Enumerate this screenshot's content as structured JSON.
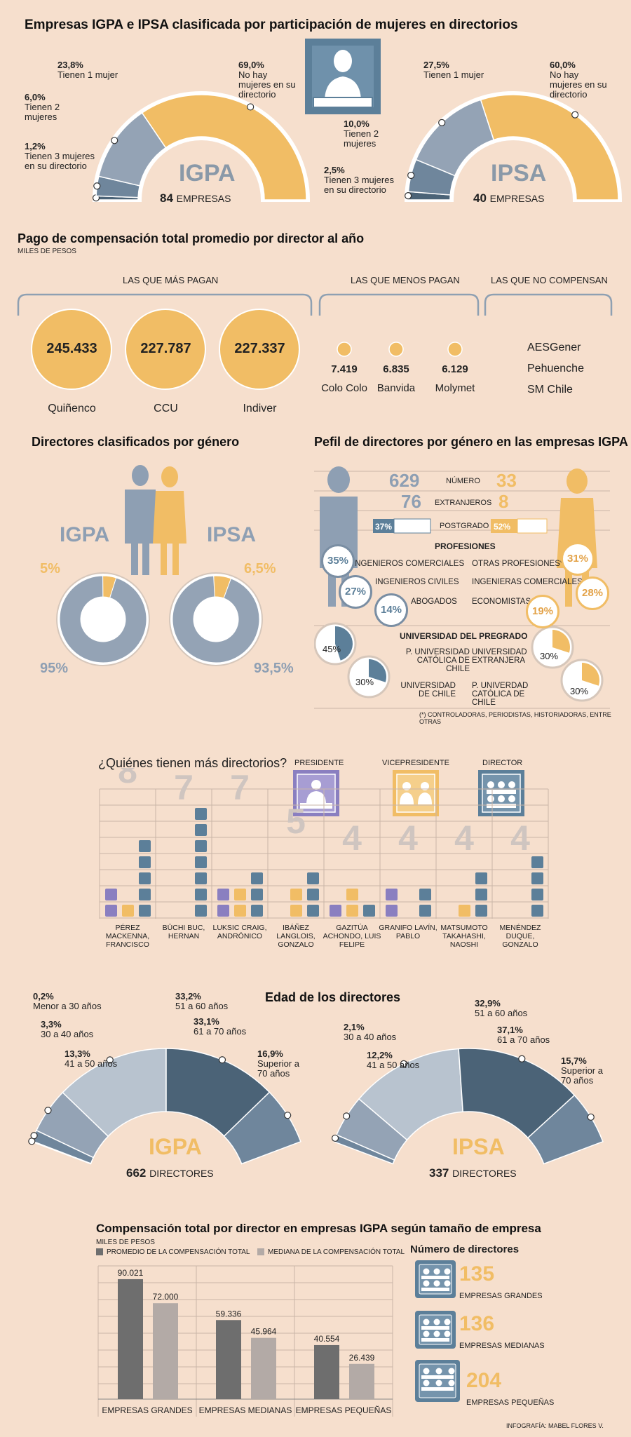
{
  "colors": {
    "bg": "#f6dfcd",
    "gold": "#f1bd65",
    "slate": "#94a3b5",
    "slate_light": "#b8c3cf",
    "navy": "#4b6377",
    "dark": "#5b6e80",
    "purple": "#8a7fc0",
    "grey_bar": "#6e6e6e",
    "grey_bar_light": "#b3aaa6"
  },
  "s1": {
    "title": "Empresas IGPA e IPSA clasificada por participación de mujeres en directorios",
    "igpa": {
      "name": "IGPA",
      "count": "84",
      "count_label": "EMPRESAS",
      "labels": [
        {
          "pct": "23,8%",
          "text": "Tienen 1 mujer"
        },
        {
          "pct": "6,0%",
          "text": "Tienen 2 mujeres"
        },
        {
          "pct": "1,2%",
          "text": "Tienen 3 mujeres en su directorio"
        },
        {
          "pct": "69,0%",
          "text": "No hay mujeres en su directorio"
        }
      ]
    },
    "ipsa": {
      "name": "IPSA",
      "count": "40",
      "count_label": "EMPRESAS",
      "labels": [
        {
          "pct": "27,5%",
          "text": "Tienen 1 mujer"
        },
        {
          "pct": "10,0%",
          "text": "Tienen 2 mujeres"
        },
        {
          "pct": "2,5%",
          "text": "Tienen 3 mujeres en su directorio"
        },
        {
          "pct": "60,0%",
          "text": "No hay mujeres en su directorio"
        }
      ]
    }
  },
  "s2": {
    "title": "Pago de compensación total promedio por director al año",
    "subtitle": "MILES DE PESOS",
    "group_top": "LAS QUE MÁS PAGAN",
    "group_low": "LAS QUE MENOS PAGAN",
    "group_none": "LAS QUE NO COMPENSAN",
    "top": [
      {
        "value": "245.433",
        "name": "Quiñenco"
      },
      {
        "value": "227.787",
        "name": "CCU"
      },
      {
        "value": "227.337",
        "name": "Indiver"
      }
    ],
    "low": [
      {
        "value": "7.419",
        "name": "Colo Colo"
      },
      {
        "value": "6.835",
        "name": "Banvida"
      },
      {
        "value": "6.129",
        "name": "Molymet"
      }
    ],
    "none": [
      "AESGener",
      "Pehuenche",
      "SM Chile"
    ]
  },
  "s3": {
    "title": "Directores clasificados por género",
    "igpa": {
      "name": "IGPA",
      "women": "5%",
      "men": "95%"
    },
    "ipsa": {
      "name": "IPSA",
      "women": "6,5%",
      "men": "93,5%"
    }
  },
  "s4": {
    "title": "Pefil de directores por género en las empresas IGPA",
    "rows": [
      {
        "men": "629",
        "label": "NÚMERO",
        "women": "33"
      },
      {
        "men": "76",
        "label": "EXTRANJEROS",
        "women": "8"
      },
      {
        "men": "37%",
        "label": "POSTGRADO",
        "women": "52%"
      }
    ],
    "prof_title": "PROFESIONES",
    "prof_men": [
      {
        "pct": "35%",
        "label": "INGENIEROS COMERCIALES"
      },
      {
        "pct": "27%",
        "label": "INGENIEROS CIVILES"
      },
      {
        "pct": "14%",
        "label": "ABOGADOS"
      }
    ],
    "prof_women": [
      {
        "pct": "31%",
        "label": "OTRAS PROFESIONES*"
      },
      {
        "pct": "28%",
        "label": "INGENIERAS COMERCIALES"
      },
      {
        "pct": "19%",
        "label": "ECONOMISTAS"
      }
    ],
    "uni_title": "UNIVERSIDAD DEL PREGRADO",
    "uni_men": [
      {
        "pct": "45%",
        "label": "P. UNIVERSIDAD CATÓLICA DE CHILE"
      },
      {
        "pct": "30%",
        "label": "UNIVERSIDAD DE CHILE"
      }
    ],
    "uni_women": [
      {
        "pct": "30%",
        "label": "UNIVERSIDAD EXTRANJERA"
      },
      {
        "pct": "30%",
        "label": "P. UNIVERDAD CATÓLICA DE CHILE"
      }
    ],
    "footnote": "(*) CONTROLADORAS, PERIODISTAS, HISTORIADORAS, ENTRE OTRAS"
  },
  "s5": {
    "title": "¿Quiénes tienen más directorios?",
    "legend": [
      "PRESIDENTE",
      "VICEPRESIDENTE",
      "DIRECTOR"
    ],
    "people": [
      {
        "name": "PÉREZ MACKENNA, FRANCISCO",
        "total": "8"
      },
      {
        "name": "BÜCHI BUC, HERNAN",
        "total": "7"
      },
      {
        "name": "LUKSIC CRAIG, ANDRÓNICO",
        "total": "7"
      },
      {
        "name": "IBÁÑEZ LANGLOIS, GONZALO",
        "total": "5"
      },
      {
        "name": "GAZITÚA ACHONDO, LUIS FELIPE",
        "total": "4"
      },
      {
        "name": "GRANIFO LAVÍN, PABLO",
        "total": "4"
      },
      {
        "name": "MATSUMOTO TAKAHASHI, NAOSHI",
        "total": "4"
      },
      {
        "name": "MENÉNDEZ DUQUE, GONZALO",
        "total": "4"
      }
    ]
  },
  "s6": {
    "title": "Edad de los directores",
    "igpa": {
      "name": "IGPA",
      "count": "662",
      "count_label": "DIRECTORES",
      "labels": [
        {
          "pct": "0,2%",
          "text": "Menor a 30 años"
        },
        {
          "pct": "3,3%",
          "text": "30 a 40 años"
        },
        {
          "pct": "13,3%",
          "text": "41 a 50 años"
        },
        {
          "pct": "33,2%",
          "text": "51 a 60 años"
        },
        {
          "pct": "33,1%",
          "text": "61 a 70 años"
        },
        {
          "pct": "16,9%",
          "text": "Superior a 70 años"
        }
      ]
    },
    "ipsa": {
      "name": "IPSA",
      "count": "337",
      "count_label": "DIRECTORES",
      "labels": [
        {
          "pct": "2,1%",
          "text": "30 a 40 años"
        },
        {
          "pct": "12,2%",
          "text": "41 a 50 años"
        },
        {
          "pct": "32,9%",
          "text": "51 a 60 años"
        },
        {
          "pct": "37,1%",
          "text": "61 a 70 años"
        },
        {
          "pct": "15,7%",
          "text": "Superior a 70 años"
        }
      ]
    }
  },
  "s7": {
    "title": "Compensación total por director en empresas IGPA según tamaño de empresa",
    "subtitle": "MILES DE PESOS",
    "legend_avg": "PROMEDIO DE LA COMPENSACIÓN TOTAL",
    "legend_med": "MEDIANA DE LA COMPENSACIÓN TOTAL",
    "num_title": "Número de directores",
    "counts": [
      {
        "value": "135",
        "label": "EMPRESAS GRANDES"
      },
      {
        "value": "136",
        "label": "EMPRESAS MEDIANAS"
      },
      {
        "value": "204",
        "label": "EMPRESAS PEQUEÑAS"
      }
    ],
    "credit": "INFOGRAFÍA: MABEL FLORES V."
  },
  "chart_data": [
    {
      "type": "pie",
      "title": "Empresas IGPA e IPSA clasificada por participación de mujeres en directorios",
      "series": [
        {
          "name": "IGPA",
          "categories": [
            "Tienen 3 mujeres",
            "Tienen 2 mujeres",
            "Tienen 1 mujer",
            "No hay mujeres"
          ],
          "values": [
            1.2,
            6.0,
            23.8,
            69.0
          ]
        },
        {
          "name": "IPSA",
          "categories": [
            "Tienen 3 mujeres",
            "Tienen 2 mujeres",
            "Tienen 1 mujer",
            "No hay mujeres"
          ],
          "values": [
            2.5,
            10.0,
            27.5,
            60.0
          ]
        }
      ]
    },
    {
      "type": "pie",
      "title": "Directores clasificados por género",
      "series": [
        {
          "name": "IGPA",
          "values": [
            5,
            95
          ]
        },
        {
          "name": "IPSA",
          "values": [
            6.5,
            93.5
          ]
        }
      ]
    },
    {
      "type": "bar",
      "title": "¿Quiénes tienen más directorios?",
      "categories": [
        "PÉREZ MACKENNA, FRANCISCO",
        "BÜCHI BUC, HERNAN",
        "LUKSIC CRAIG, ANDRÓNICO",
        "IBÁÑEZ LANGLOIS, GONZALO",
        "GAZITÚA ACHONDO, LUIS FELIPE",
        "GRANIFO LAVÍN, PABLO",
        "MATSUMOTO TAKAHASHI, NAOSHI",
        "MENÉNDEZ DUQUE, GONZALO"
      ],
      "series": [
        {
          "name": "PRESIDENTE",
          "values": [
            2,
            0,
            2,
            0,
            1,
            2,
            0,
            0
          ]
        },
        {
          "name": "VICEPRESIDENTE",
          "values": [
            1,
            0,
            2,
            2,
            2,
            0,
            1,
            0
          ]
        },
        {
          "name": "DIRECTOR",
          "values": [
            5,
            7,
            3,
            3,
            1,
            2,
            3,
            4
          ]
        }
      ]
    },
    {
      "type": "pie",
      "title": "Edad de los directores",
      "series": [
        {
          "name": "IGPA",
          "categories": [
            "Menor a 30 años",
            "30 a 40 años",
            "41 a 50 años",
            "51 a 60 años",
            "61 a 70 años",
            "Superior a 70 años"
          ],
          "values": [
            0.2,
            3.3,
            13.3,
            33.2,
            33.1,
            16.9
          ]
        },
        {
          "name": "IPSA",
          "categories": [
            "30 a 40 años",
            "41 a 50 años",
            "51 a 60 años",
            "61 a 70 años",
            "Superior a 70 años"
          ],
          "values": [
            2.1,
            12.2,
            32.9,
            37.1,
            15.7
          ]
        }
      ]
    },
    {
      "type": "bar",
      "title": "Compensación total por director en empresas IGPA según tamaño de empresa",
      "ylabel": "MILES DE PESOS",
      "categories": [
        "EMPRESAS GRANDES",
        "EMPRESAS MEDIANAS",
        "EMPRESAS PEQUEÑAS"
      ],
      "series": [
        {
          "name": "PROMEDIO DE LA COMPENSACIÓN TOTAL",
          "values": [
            90021,
            59336,
            40554
          ],
          "labels": [
            "90.021",
            "59.336",
            "40.554"
          ]
        },
        {
          "name": "MEDIANA DE LA COMPENSACIÓN TOTAL",
          "values": [
            72000,
            45964,
            26439
          ],
          "labels": [
            "72.000",
            "45.964",
            "26.439"
          ]
        }
      ],
      "ylim": [
        0,
        100000
      ]
    }
  ]
}
